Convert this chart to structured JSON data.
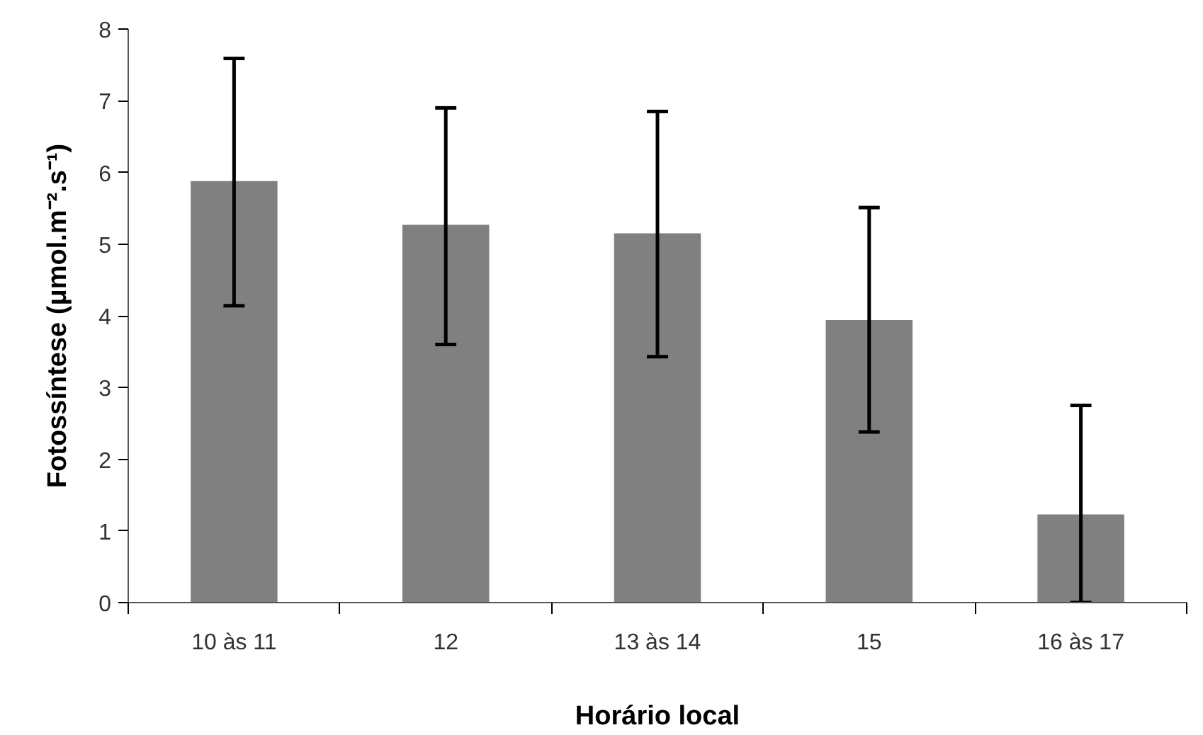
{
  "chart_data": {
    "type": "bar",
    "xlabel": "Horário local",
    "ylabel": "Fotossíntese (μmol.m⁻².s⁻¹)",
    "categories": [
      "10 às 11",
      "12",
      "13 às 14",
      "15",
      "16 às 17"
    ],
    "values": [
      5.88,
      5.27,
      5.15,
      3.94,
      1.23
    ],
    "errors": [
      [
        4.14,
        7.59
      ],
      [
        3.6,
        6.9
      ],
      [
        3.43,
        6.85
      ],
      [
        2.38,
        5.51
      ],
      [
        0,
        2.75
      ]
    ],
    "color": "#808080",
    "ylim": [
      0,
      8
    ],
    "yticks": [
      0,
      1,
      2,
      3,
      4,
      5,
      6,
      7,
      8
    ],
    "grid": false
  }
}
